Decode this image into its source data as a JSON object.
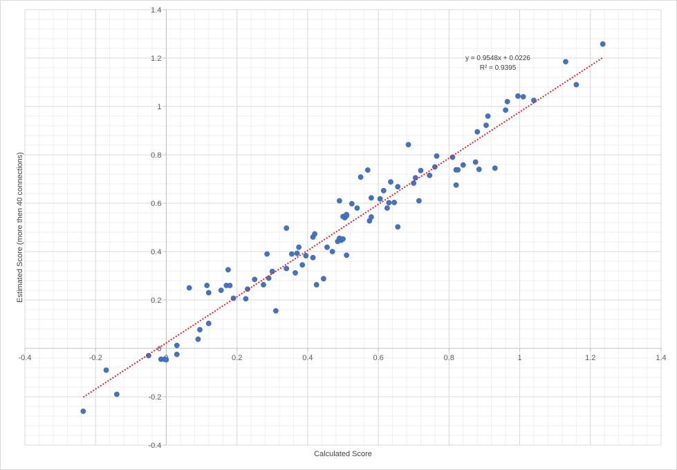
{
  "chart_data": {
    "type": "scatter",
    "title": "",
    "xlabel": "Calculated Score",
    "ylabel": "Estimated Score (more then 40 connections)",
    "xlim": [
      -0.4,
      1.4
    ],
    "ylim": [
      -0.4,
      1.4
    ],
    "x_ticks": [
      "-0.4",
      "-0.2",
      "0",
      "0.2",
      "0.4",
      "0.6",
      "0.8",
      "1",
      "1.2",
      "1.4"
    ],
    "y_ticks": [
      "-0.4",
      "-0.2",
      "0",
      "0.2",
      "0.4",
      "0.6",
      "0.8",
      "1",
      "1.2",
      "1.4"
    ],
    "x_tick_values": [
      -0.4,
      -0.2,
      0,
      0.2,
      0.4,
      0.6,
      0.8,
      1.0,
      1.2,
      1.4
    ],
    "y_tick_values": [
      -0.4,
      -0.2,
      0,
      0.2,
      0.4,
      0.6,
      0.8,
      1.0,
      1.2,
      1.4
    ],
    "grid": true,
    "marker_color": "#4472C4",
    "trendline_color": "#E02020",
    "trendline": {
      "type": "linear",
      "slope": 0.9548,
      "intercept": 0.0226,
      "x_range": [
        -0.235,
        1.235
      ],
      "equation": "y = 0.9548x + 0.0226",
      "r_squared": "R² = 0.9395"
    },
    "points": [
      [
        -0.235,
        -0.26
      ],
      [
        -0.17,
        -0.09
      ],
      [
        -0.14,
        -0.19
      ],
      [
        -0.05,
        -0.03
      ],
      [
        -0.015,
        -0.045
      ],
      [
        -0.005,
        -0.045
      ],
      [
        0.0,
        -0.047
      ],
      [
        0.03,
        -0.025
      ],
      [
        0.03,
        0.012
      ],
      [
        0.065,
        0.25
      ],
      [
        0.09,
        0.038
      ],
      [
        0.095,
        0.077
      ],
      [
        0.115,
        0.26
      ],
      [
        0.12,
        0.23
      ],
      [
        0.12,
        0.103
      ],
      [
        0.155,
        0.24
      ],
      [
        0.17,
        0.26
      ],
      [
        0.175,
        0.325
      ],
      [
        0.18,
        0.26
      ],
      [
        0.19,
        0.207
      ],
      [
        0.225,
        0.205
      ],
      [
        0.23,
        0.245
      ],
      [
        0.25,
        0.285
      ],
      [
        0.275,
        0.263
      ],
      [
        0.285,
        0.39
      ],
      [
        0.29,
        0.29
      ],
      [
        0.3,
        0.318
      ],
      [
        0.31,
        0.155
      ],
      [
        0.34,
        0.33
      ],
      [
        0.34,
        0.497
      ],
      [
        0.355,
        0.39
      ],
      [
        0.365,
        0.312
      ],
      [
        0.37,
        0.393
      ],
      [
        0.375,
        0.418
      ],
      [
        0.385,
        0.345
      ],
      [
        0.395,
        0.383
      ],
      [
        0.415,
        0.375
      ],
      [
        0.415,
        0.46
      ],
      [
        0.42,
        0.473
      ],
      [
        0.425,
        0.263
      ],
      [
        0.445,
        0.288
      ],
      [
        0.455,
        0.418
      ],
      [
        0.47,
        0.4
      ],
      [
        0.485,
        0.442
      ],
      [
        0.49,
        0.61
      ],
      [
        0.49,
        0.455
      ],
      [
        0.495,
        0.447
      ],
      [
        0.5,
        0.452
      ],
      [
        0.5,
        0.545
      ],
      [
        0.505,
        0.54
      ],
      [
        0.51,
        0.548
      ],
      [
        0.51,
        0.385
      ],
      [
        0.51,
        0.553
      ],
      [
        0.525,
        0.598
      ],
      [
        0.54,
        0.58
      ],
      [
        0.55,
        0.708
      ],
      [
        0.57,
        0.737
      ],
      [
        0.575,
        0.527
      ],
      [
        0.58,
        0.622
      ],
      [
        0.58,
        0.543
      ],
      [
        0.605,
        0.618
      ],
      [
        0.615,
        0.652
      ],
      [
        0.625,
        0.58
      ],
      [
        0.63,
        0.602
      ],
      [
        0.635,
        0.688
      ],
      [
        0.645,
        0.603
      ],
      [
        0.655,
        0.668
      ],
      [
        0.655,
        0.502
      ],
      [
        0.685,
        0.842
      ],
      [
        0.7,
        0.683
      ],
      [
        0.705,
        0.705
      ],
      [
        0.715,
        0.61
      ],
      [
        0.72,
        0.735
      ],
      [
        0.745,
        0.715
      ],
      [
        0.76,
        0.75
      ],
      [
        0.765,
        0.795
      ],
      [
        0.81,
        0.79
      ],
      [
        0.82,
        0.738
      ],
      [
        0.82,
        0.675
      ],
      [
        0.825,
        0.738
      ],
      [
        0.84,
        0.758
      ],
      [
        0.875,
        0.77
      ],
      [
        0.88,
        0.895
      ],
      [
        0.885,
        0.74
      ],
      [
        0.905,
        0.922
      ],
      [
        0.91,
        0.96
      ],
      [
        0.93,
        0.745
      ],
      [
        0.96,
        0.985
      ],
      [
        0.965,
        1.02
      ],
      [
        0.995,
        1.043
      ],
      [
        1.01,
        1.04
      ],
      [
        1.04,
        1.025
      ],
      [
        1.13,
        1.185
      ],
      [
        1.16,
        1.09
      ],
      [
        1.235,
        1.258
      ]
    ]
  }
}
